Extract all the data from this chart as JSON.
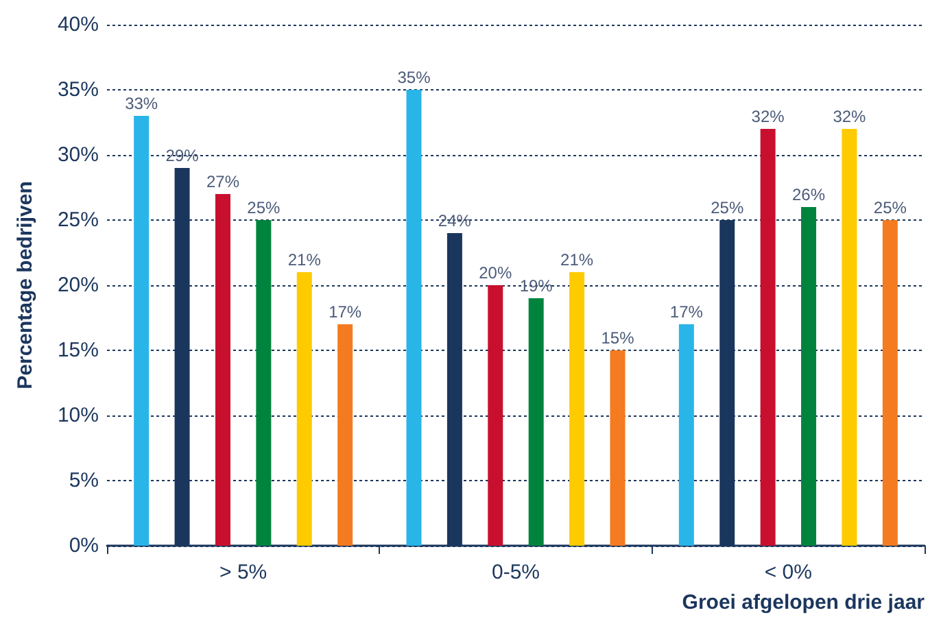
{
  "chart_data": {
    "type": "bar",
    "xlabel": "Groei afgelopen drie jaar",
    "ylabel": "Percentage bedrijven",
    "categories": [
      "> 5%",
      "0-5%",
      "< 0%"
    ],
    "series": [
      {
        "color": "#29b5e8",
        "values": [
          33,
          35,
          17
        ],
        "value_labels": [
          "33%",
          "35%",
          "17%"
        ]
      },
      {
        "color": "#1b365d",
        "values": [
          29,
          24,
          25
        ],
        "value_labels": [
          "29%",
          "24%",
          "25%"
        ]
      },
      {
        "color": "#c8102e",
        "values": [
          27,
          20,
          32
        ],
        "value_labels": [
          "27%",
          "20%",
          "32%"
        ]
      },
      {
        "color": "#00843d",
        "values": [
          25,
          19,
          26
        ],
        "value_labels": [
          "25%",
          "19%",
          "26%"
        ]
      },
      {
        "color": "#fecb00",
        "values": [
          21,
          21,
          32
        ],
        "value_labels": [
          "21%",
          "21%",
          "32%"
        ]
      },
      {
        "color": "#f47b20",
        "values": [
          17,
          15,
          25
        ],
        "value_labels": [
          "17%",
          "15%",
          "25%"
        ]
      }
    ],
    "ylim": [
      0,
      40
    ],
    "yticks": [
      {
        "value": 0,
        "label": "0%"
      },
      {
        "value": 5,
        "label": "5%"
      },
      {
        "value": 10,
        "label": "10%"
      },
      {
        "value": 15,
        "label": "15%"
      },
      {
        "value": 20,
        "label": "20%"
      },
      {
        "value": 25,
        "label": "25%"
      },
      {
        "value": 30,
        "label": "30%"
      },
      {
        "value": 35,
        "label": "35%"
      },
      {
        "value": 40,
        "label": "40%"
      }
    ],
    "grid": "y"
  }
}
